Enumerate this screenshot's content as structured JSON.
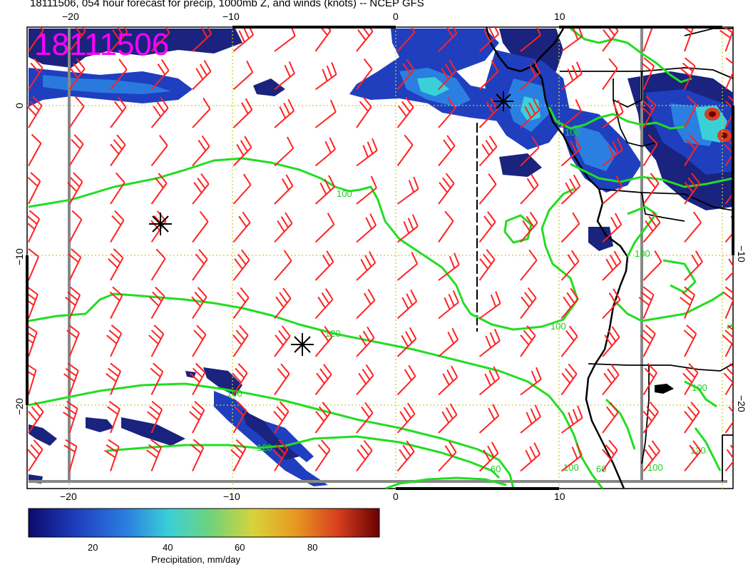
{
  "title": "18111506, 054 hour forecast for precip, 1000mb Z, and winds (knots) -- NCEP GFS",
  "stamp": "18111506",
  "map": {
    "lon_range": [
      -22.5,
      20.5
    ],
    "lat_range": [
      -25.5,
      5
    ],
    "gridline_lons": [
      -20,
      -10,
      0,
      10
    ],
    "gridline_lats": [
      0,
      -10,
      -20
    ],
    "top_tick_labels": [
      "−20",
      "−10",
      "0",
      "10"
    ],
    "bottom_tick_labels": [
      "−20",
      "−10",
      "0",
      "10"
    ],
    "left_tick_labels": [
      "0",
      "−10",
      "−20"
    ],
    "right_tick_labels": [
      "−10",
      "−20"
    ],
    "contour_labels": [
      "100",
      "100",
      "120",
      "100",
      "100",
      "120",
      "100",
      "60",
      "60",
      "100",
      "120",
      "100",
      "100"
    ],
    "colors": {
      "precip_dark": "#1a237e",
      "precip_mid": "#2f6fd6",
      "precip_light": "#4fc3f7",
      "precip_hot": "#c62828",
      "contour": "#22dd22",
      "wind": "#ff2222",
      "grid": "#cccc33",
      "stamp": "#ff00ff"
    }
  },
  "colorbar": {
    "tick_labels": [
      "20",
      "40",
      "60",
      "80"
    ],
    "title": "Precipitation, mm/day",
    "colors": [
      "#0b0b6e",
      "#1f3fbf",
      "#2b7fe0",
      "#3ad0d8",
      "#6fd37a",
      "#d7d43a",
      "#e79a22",
      "#d7401f",
      "#8b0000"
    ]
  }
}
